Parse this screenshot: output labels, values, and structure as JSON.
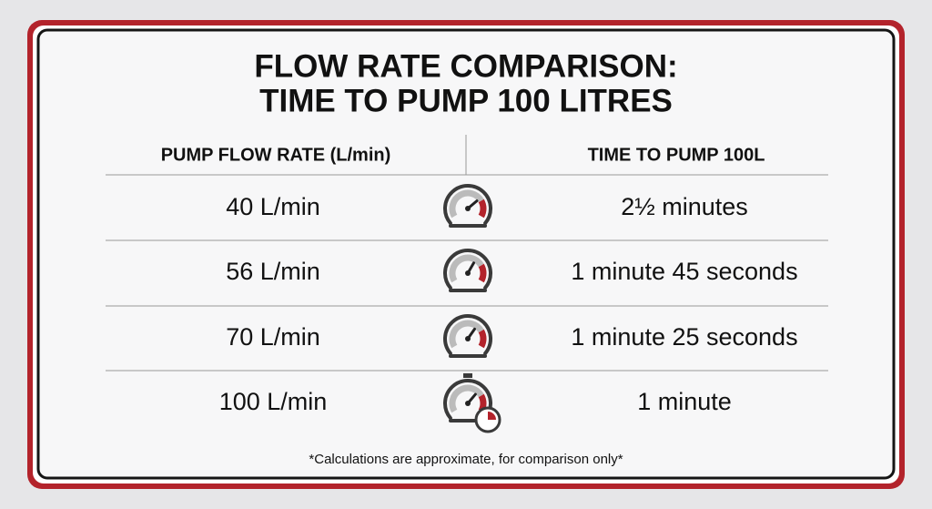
{
  "title": {
    "lines": [
      "FLOW RATE COMPARISON:",
      "TIME TO PUMP 100 LITRES"
    ]
  },
  "table": {
    "headers": [
      "PUMP FLOW RATE (L/min)",
      "TIME TO PUMP 100L"
    ],
    "rows": [
      [
        "40 L/min",
        "2½ minutes"
      ],
      [
        "56 L/min",
        "1 minute 45 seconds"
      ],
      [
        "70 L/min",
        "1 minute 25 seconds"
      ],
      [
        "100 L/min",
        "1 minute"
      ]
    ]
  },
  "footnote": "*Calculations are approximate, for comparison only*"
}
